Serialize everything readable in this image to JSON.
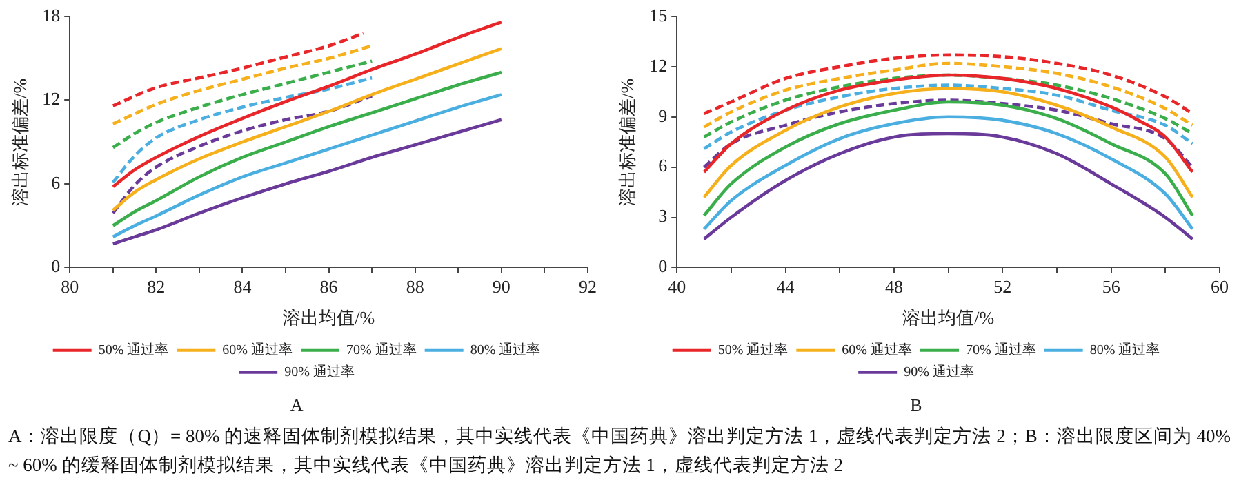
{
  "chart_data": [
    {
      "type": "line",
      "title": "A",
      "xlabel": "溶出均值/%",
      "ylabel": "溶出标准偏差/%",
      "xlim": [
        80,
        92
      ],
      "ylim": [
        0,
        18
      ],
      "xticks": [
        80,
        {
          "value": 81,
          "label": null
        },
        82,
        {
          "value": 83,
          "label": null
        },
        84,
        {
          "value": 85,
          "label": null
        },
        86,
        {
          "value": 87,
          "label": null
        },
        88,
        {
          "value": 89,
          "label": null
        },
        90,
        {
          "value": 91,
          "label": null
        },
        92
      ],
      "yticks": [
        0,
        6,
        12,
        18
      ],
      "grid": false,
      "legend": "bottom",
      "marker": "none",
      "annotations": [
        "A：溶出限度（Q）= 80% 的速释固体制剂模拟结果，其中实线代表《中国药典》溶出判定方法 1，虚线代表判定方法 2；B：溶出限度区间为 40% ~ 60% 的缓释固体制剂模拟结果，其中实线代表《中国药典》溶出判定方法 1，虚线代表判定方法 2"
      ],
      "series": [
        {
          "name": "50% 通过率",
          "color": "#e8262a",
          "line_style": "solid",
          "x": [
            81,
            81.5,
            82,
            83,
            84,
            85,
            86,
            87,
            88,
            89,
            90
          ],
          "values": [
            5.8,
            7.0,
            7.9,
            9.4,
            10.7,
            11.9,
            13.0,
            14.2,
            15.3,
            16.5,
            17.6
          ]
        },
        {
          "name": "60% 通过率",
          "color": "#f5b01c",
          "line_style": "solid",
          "x": [
            81,
            81.5,
            82,
            83,
            84,
            85,
            86,
            87,
            88,
            89,
            90
          ],
          "values": [
            4.1,
            5.4,
            6.3,
            7.8,
            9.0,
            10.1,
            11.2,
            12.4,
            13.5,
            14.6,
            15.7
          ]
        },
        {
          "name": "70% 通过率",
          "color": "#3aae4a",
          "line_style": "solid",
          "x": [
            81,
            81.5,
            82,
            83,
            84,
            85,
            86,
            87,
            88,
            89,
            90
          ],
          "values": [
            3.0,
            4.0,
            4.8,
            6.5,
            7.9,
            9.0,
            10.1,
            11.1,
            12.1,
            13.1,
            14.0
          ]
        },
        {
          "name": "80% 通过率",
          "color": "#4aaee0",
          "line_style": "solid",
          "x": [
            81,
            81.5,
            82,
            83,
            84,
            85,
            86,
            87,
            88,
            89,
            90
          ],
          "values": [
            2.2,
            3.0,
            3.7,
            5.2,
            6.5,
            7.5,
            8.5,
            9.5,
            10.5,
            11.5,
            12.4
          ]
        },
        {
          "name": "90% 通过率",
          "color": "#6a3a9a",
          "line_style": "solid",
          "x": [
            81,
            81.5,
            82,
            83,
            84,
            85,
            86,
            87,
            88,
            89,
            90
          ],
          "values": [
            1.7,
            2.2,
            2.7,
            3.9,
            5.0,
            6.0,
            6.9,
            7.9,
            8.8,
            9.7,
            10.6
          ]
        },
        {
          "color": "#e8262a",
          "line_style": "dashed",
          "x": [
            81,
            82,
            83,
            84,
            85,
            86,
            86.8
          ],
          "values": [
            11.6,
            12.9,
            13.6,
            14.3,
            15.1,
            15.9,
            16.8
          ]
        },
        {
          "color": "#f5b01c",
          "line_style": "dashed",
          "x": [
            81,
            82,
            83,
            84,
            85,
            86,
            87
          ],
          "values": [
            10.3,
            11.7,
            12.7,
            13.5,
            14.3,
            15.0,
            15.9
          ]
        },
        {
          "color": "#3aae4a",
          "line_style": "dashed",
          "x": [
            81,
            81.5,
            82,
            83,
            84,
            85,
            86,
            87
          ],
          "values": [
            8.6,
            9.6,
            10.4,
            11.5,
            12.4,
            13.2,
            14.0,
            14.8
          ]
        },
        {
          "color": "#4aaee0",
          "line_style": "dashed",
          "x": [
            81,
            81.5,
            82,
            83,
            84,
            85,
            86,
            87
          ],
          "values": [
            6.1,
            8.0,
            9.3,
            10.6,
            11.5,
            12.2,
            12.8,
            13.6
          ]
        },
        {
          "color": "#6a3a9a",
          "line_style": "dashed",
          "x": [
            81,
            81.5,
            82,
            83,
            84,
            85,
            86,
            87
          ],
          "values": [
            3.9,
            5.9,
            7.2,
            8.7,
            9.8,
            10.6,
            11.2,
            12.3
          ]
        }
      ]
    },
    {
      "type": "line",
      "title": "B",
      "xlabel": "溶出均值/%",
      "ylabel": "溶出标准偏差/%",
      "xlim": [
        40,
        60
      ],
      "ylim": [
        0,
        15
      ],
      "xticks": [
        40,
        {
          "value": 42,
          "label": null
        },
        44,
        {
          "value": 46,
          "label": null
        },
        48,
        {
          "value": 50,
          "label": null
        },
        52,
        {
          "value": 54,
          "label": null
        },
        56,
        {
          "value": 58,
          "label": null
        },
        60
      ],
      "yticks": [
        0,
        3,
        6,
        9,
        12,
        15
      ],
      "grid": false,
      "legend": "bottom",
      "marker": "none",
      "series": [
        {
          "name": "50% 通过率",
          "color": "#e8262a",
          "line_style": "solid",
          "x": [
            41,
            42,
            44,
            46,
            48,
            50,
            52,
            54,
            56,
            57,
            58,
            59
          ],
          "values": [
            5.7,
            7.4,
            9.4,
            10.6,
            11.2,
            11.5,
            11.3,
            10.7,
            9.6,
            8.8,
            7.8,
            5.7
          ]
        },
        {
          "name": "60% 通过率",
          "color": "#f5b01c",
          "line_style": "solid",
          "x": [
            41,
            42,
            44,
            46,
            48,
            50,
            52,
            54,
            56,
            58,
            59
          ],
          "values": [
            4.2,
            6.1,
            8.2,
            9.6,
            10.4,
            10.7,
            10.5,
            9.7,
            8.4,
            6.6,
            4.2
          ]
        },
        {
          "name": "70% 通过率",
          "color": "#3aae4a",
          "line_style": "solid",
          "x": [
            41,
            42,
            44,
            46,
            48,
            50,
            52,
            54,
            56,
            58,
            59
          ],
          "values": [
            3.1,
            5.0,
            7.2,
            8.6,
            9.4,
            9.9,
            9.7,
            8.9,
            7.4,
            5.6,
            3.1
          ]
        },
        {
          "name": "80% 通过率",
          "color": "#4aaee0",
          "line_style": "solid",
          "x": [
            41,
            42,
            44,
            46,
            48,
            50,
            52,
            54,
            56,
            58,
            59
          ],
          "values": [
            2.3,
            4.0,
            6.1,
            7.7,
            8.6,
            9.0,
            8.8,
            8.0,
            6.5,
            4.4,
            2.3
          ]
        },
        {
          "name": "90% 通过率",
          "color": "#6a3a9a",
          "line_style": "solid",
          "x": [
            41,
            42,
            44,
            46,
            48,
            50,
            52,
            54,
            56,
            58,
            59
          ],
          "values": [
            1.7,
            3.0,
            5.2,
            6.8,
            7.8,
            8.0,
            7.8,
            6.8,
            5.0,
            3.0,
            1.7
          ]
        },
        {
          "color": "#e8262a",
          "line_style": "dashed",
          "x": [
            41,
            42,
            44,
            46,
            48,
            50,
            52,
            54,
            56,
            58,
            59
          ],
          "values": [
            9.2,
            9.9,
            11.3,
            12.0,
            12.5,
            12.7,
            12.6,
            12.2,
            11.5,
            10.2,
            9.2
          ]
        },
        {
          "color": "#f5b01c",
          "line_style": "dashed",
          "x": [
            41,
            42,
            44,
            46,
            48,
            50,
            52,
            54,
            56,
            58,
            59
          ],
          "values": [
            8.4,
            9.3,
            10.6,
            11.3,
            11.8,
            12.2,
            12.0,
            11.6,
            10.8,
            9.5,
            8.5
          ]
        },
        {
          "color": "#3aae4a",
          "line_style": "dashed",
          "x": [
            41,
            42,
            44,
            46,
            48,
            50,
            52,
            54,
            56,
            58,
            59
          ],
          "values": [
            7.8,
            8.7,
            10.0,
            10.8,
            11.3,
            11.5,
            11.3,
            10.9,
            10.1,
            8.9,
            8.0
          ]
        },
        {
          "color": "#4aaee0",
          "line_style": "dashed",
          "x": [
            41,
            42,
            44,
            46,
            48,
            50,
            52,
            54,
            56,
            58,
            59
          ],
          "values": [
            7.1,
            8.1,
            9.4,
            10.2,
            10.7,
            10.9,
            10.7,
            10.3,
            9.4,
            8.5,
            7.4
          ]
        },
        {
          "color": "#6a3a9a",
          "line_style": "dashed",
          "x": [
            41,
            42,
            44,
            46,
            48,
            50,
            52,
            54,
            56,
            58,
            59
          ],
          "values": [
            6.0,
            7.4,
            8.5,
            9.3,
            9.8,
            10.0,
            9.8,
            9.4,
            8.6,
            7.7,
            6.0
          ]
        }
      ]
    }
  ]
}
